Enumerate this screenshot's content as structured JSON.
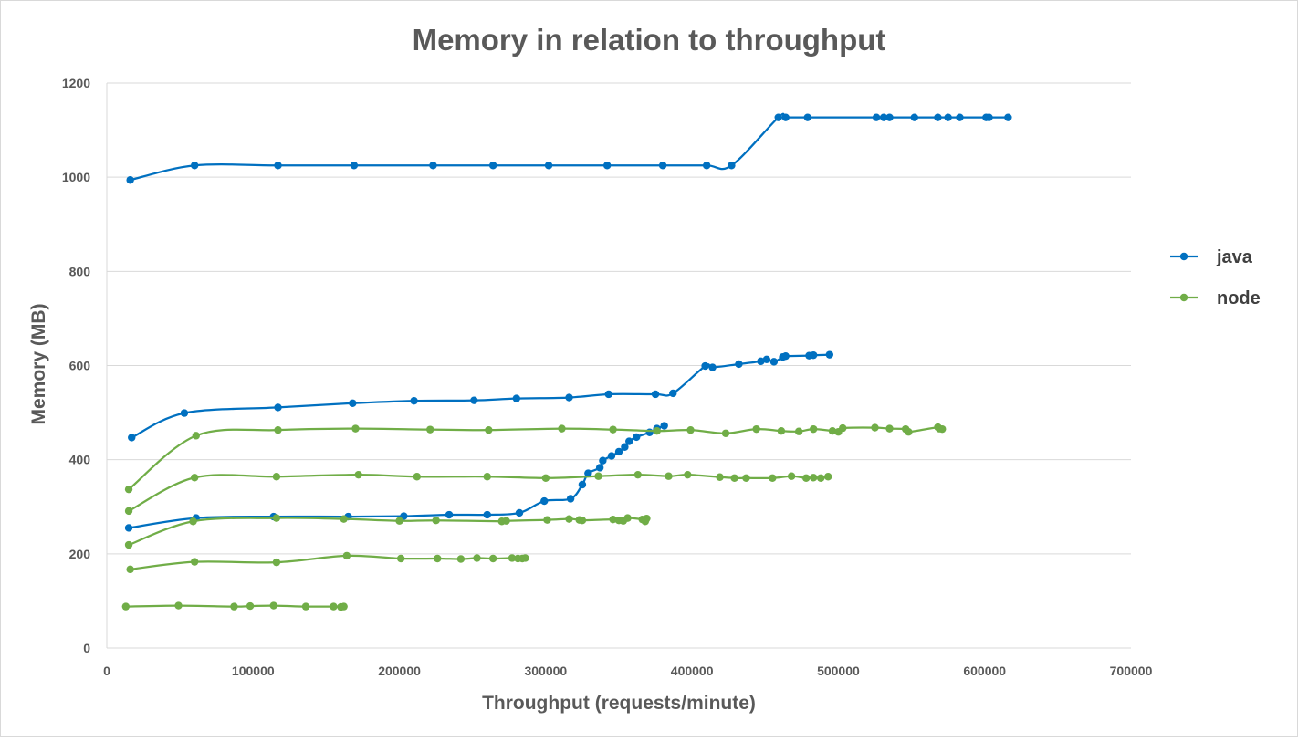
{
  "chart_data": {
    "type": "line",
    "smooth": true,
    "markers": true,
    "title": "Memory in relation to throughput",
    "xlabel": "Throughput (requests/minute)",
    "ylabel": "Memory (MB)",
    "xlim": [
      0,
      700000
    ],
    "ylim": [
      0,
      1200
    ],
    "xticks": [
      0,
      100000,
      200000,
      300000,
      400000,
      500000,
      600000,
      700000
    ],
    "yticks": [
      0,
      200,
      400,
      600,
      800,
      1000,
      1200
    ],
    "grid": "horizontal",
    "legend_position": "right",
    "legend": [
      {
        "name": "java",
        "color": "#0070c0"
      },
      {
        "name": "node",
        "color": "#70ad47"
      }
    ],
    "series": [
      {
        "name": "java",
        "color": "#0070c0",
        "points": [
          [
            16000,
            994
          ],
          [
            60000,
            1025
          ],
          [
            117000,
            1025
          ],
          [
            169000,
            1025
          ],
          [
            223000,
            1025
          ],
          [
            264000,
            1025
          ],
          [
            302000,
            1025
          ],
          [
            342000,
            1025
          ],
          [
            380000,
            1025
          ],
          [
            410000,
            1025
          ],
          [
            427000,
            1025
          ],
          [
            459000,
            1127
          ],
          [
            464000,
            1127
          ],
          [
            479000,
            1127
          ],
          [
            526000,
            1127
          ],
          [
            531000,
            1127
          ],
          [
            535000,
            1127
          ],
          [
            552000,
            1127
          ],
          [
            568000,
            1127
          ],
          [
            575000,
            1127
          ],
          [
            583000,
            1127
          ],
          [
            601000,
            1127
          ],
          [
            603000,
            1127
          ],
          [
            616000,
            1127
          ]
        ]
      },
      {
        "name": "java",
        "color": "#0070c0",
        "points": [
          [
            17000,
            447
          ],
          [
            53000,
            499
          ],
          [
            117000,
            511
          ],
          [
            168000,
            520
          ],
          [
            210000,
            525
          ],
          [
            251000,
            526
          ],
          [
            280000,
            530
          ],
          [
            316000,
            532
          ],
          [
            343000,
            539
          ],
          [
            375000,
            539
          ],
          [
            387000,
            541
          ],
          [
            409000,
            599
          ],
          [
            414000,
            596
          ],
          [
            432000,
            603
          ],
          [
            447000,
            609
          ],
          [
            451000,
            613
          ],
          [
            456000,
            608
          ],
          [
            462000,
            618
          ],
          [
            464000,
            620
          ],
          [
            480000,
            621
          ],
          [
            483000,
            622
          ],
          [
            494000,
            623
          ]
        ]
      },
      {
        "name": "java",
        "color": "#0070c0",
        "points": [
          [
            15000,
            255
          ],
          [
            61000,
            276
          ],
          [
            114000,
            279
          ],
          [
            165000,
            279
          ],
          [
            203000,
            280
          ],
          [
            234000,
            283
          ],
          [
            260000,
            283
          ],
          [
            282000,
            287
          ],
          [
            299000,
            312
          ],
          [
            317000,
            317
          ],
          [
            325000,
            347
          ],
          [
            329000,
            371
          ],
          [
            337000,
            383
          ],
          [
            339000,
            398
          ],
          [
            345000,
            408
          ],
          [
            350000,
            417
          ],
          [
            354000,
            427
          ],
          [
            357000,
            439
          ],
          [
            362000,
            448
          ],
          [
            371000,
            458
          ],
          [
            376000,
            466
          ],
          [
            381000,
            472
          ]
        ]
      },
      {
        "name": "node",
        "color": "#70ad47",
        "points": [
          [
            15000,
            337
          ],
          [
            61000,
            451
          ],
          [
            117000,
            463
          ],
          [
            170000,
            466
          ],
          [
            221000,
            464
          ],
          [
            261000,
            463
          ],
          [
            311000,
            466
          ],
          [
            346000,
            464
          ],
          [
            376000,
            461
          ],
          [
            399000,
            463
          ],
          [
            423000,
            456
          ],
          [
            444000,
            465
          ],
          [
            461000,
            461
          ],
          [
            473000,
            460
          ],
          [
            483000,
            465
          ],
          [
            496000,
            461
          ],
          [
            500000,
            459
          ],
          [
            503000,
            467
          ],
          [
            525000,
            468
          ],
          [
            535000,
            466
          ],
          [
            546000,
            465
          ],
          [
            548000,
            459
          ],
          [
            568000,
            469
          ],
          [
            569000,
            466
          ],
          [
            571000,
            465
          ]
        ]
      },
      {
        "name": "node",
        "color": "#70ad47",
        "points": [
          [
            15000,
            291
          ],
          [
            60000,
            362
          ],
          [
            116000,
            364
          ],
          [
            172000,
            368
          ],
          [
            212000,
            364
          ],
          [
            260000,
            364
          ],
          [
            300000,
            361
          ],
          [
            336000,
            365
          ],
          [
            363000,
            368
          ],
          [
            384000,
            365
          ],
          [
            397000,
            368
          ],
          [
            419000,
            363
          ],
          [
            429000,
            361
          ],
          [
            437000,
            361
          ],
          [
            455000,
            361
          ],
          [
            468000,
            365
          ],
          [
            478000,
            361
          ],
          [
            483000,
            362
          ],
          [
            488000,
            361
          ],
          [
            493000,
            364
          ]
        ]
      },
      {
        "name": "node",
        "color": "#70ad47",
        "points": [
          [
            15000,
            219
          ],
          [
            59000,
            269
          ],
          [
            116000,
            276
          ],
          [
            162000,
            274
          ],
          [
            200000,
            270
          ],
          [
            225000,
            271
          ],
          [
            270000,
            269
          ],
          [
            273000,
            270
          ],
          [
            301000,
            272
          ],
          [
            316000,
            274
          ],
          [
            323000,
            272
          ],
          [
            325000,
            271
          ],
          [
            346000,
            273
          ],
          [
            350000,
            271
          ],
          [
            353000,
            270
          ],
          [
            356000,
            276
          ],
          [
            366000,
            273
          ],
          [
            368000,
            269
          ],
          [
            369000,
            275
          ]
        ]
      },
      {
        "name": "node",
        "color": "#70ad47",
        "points": [
          [
            16000,
            167
          ],
          [
            60000,
            183
          ],
          [
            116000,
            182
          ],
          [
            164000,
            196
          ],
          [
            201000,
            190
          ],
          [
            226000,
            190
          ],
          [
            242000,
            189
          ],
          [
            253000,
            191
          ],
          [
            264000,
            190
          ],
          [
            277000,
            191
          ],
          [
            281000,
            190
          ],
          [
            284000,
            190
          ],
          [
            286000,
            191
          ]
        ]
      },
      {
        "name": "node",
        "color": "#70ad47",
        "points": [
          [
            13000,
            88
          ],
          [
            49000,
            90
          ],
          [
            87000,
            88
          ],
          [
            98000,
            89
          ],
          [
            114000,
            90
          ],
          [
            136000,
            88
          ],
          [
            155000,
            88
          ],
          [
            160000,
            87
          ],
          [
            162000,
            88
          ]
        ]
      }
    ]
  }
}
